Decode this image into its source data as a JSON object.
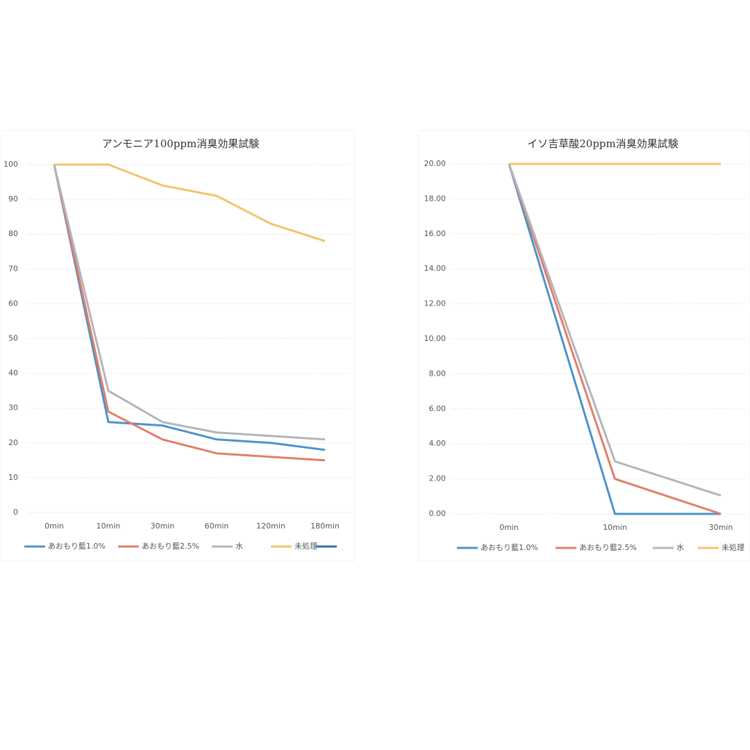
{
  "chart_data": [
    {
      "type": "line",
      "title": "アンモニア100ppm消臭効果試験",
      "categories": [
        "0min",
        "10min",
        "30min",
        "60min",
        "120min",
        "180min"
      ],
      "series": [
        {
          "name": "あおもり藍1.0%",
          "color": "#4a93c9",
          "values": [
            100,
            26,
            25,
            21,
            20,
            18
          ]
        },
        {
          "name": "あおもり藍2.5%",
          "color": "#e27d6a",
          "values": [
            100,
            29,
            21,
            17,
            16,
            15
          ]
        },
        {
          "name": "水",
          "color": "#b4b4b8",
          "values": [
            100,
            35,
            26,
            23,
            22,
            21
          ]
        },
        {
          "name": "未処理",
          "color": "#f1c46a",
          "values": [
            100,
            100,
            94,
            91,
            83,
            78
          ]
        },
        {
          "name": null,
          "color": "#2f6fae",
          "values": [
            null,
            null,
            null,
            null,
            null,
            null
          ]
        }
      ],
      "ylim": [
        0,
        100
      ],
      "yticks": [
        0,
        10,
        20,
        30,
        40,
        50,
        60,
        70,
        80,
        90,
        100
      ],
      "grid": true
    },
    {
      "type": "line",
      "title": "イソ吉草酸20ppm消臭効果試験",
      "categories": [
        "0min",
        "10min",
        "30min"
      ],
      "series": [
        {
          "name": "あおもり藍1.0%",
          "color": "#4a93c9",
          "values": [
            20,
            0,
            0
          ]
        },
        {
          "name": "あおもり藍2.5%",
          "color": "#e27d6a",
          "values": [
            20,
            2,
            0
          ]
        },
        {
          "name": "水",
          "color": "#b4b4b8",
          "values": [
            20,
            3,
            1.05
          ]
        },
        {
          "name": "未処理",
          "color": "#f1c46a",
          "values": [
            20,
            20,
            20
          ]
        }
      ],
      "ylim": [
        0,
        20
      ],
      "yticks": [
        {
          "value": 0,
          "label": "0.00"
        },
        {
          "value": 2,
          "label": "2.00"
        },
        {
          "value": 4,
          "label": "4.00"
        },
        {
          "value": 6,
          "label": "6.00"
        },
        {
          "value": 8,
          "label": "8.00"
        },
        {
          "value": 10,
          "label": "10.00"
        },
        {
          "value": 12,
          "label": "12.00"
        },
        {
          "value": 14,
          "label": "14.00"
        },
        {
          "value": 16,
          "label": "16.00"
        },
        {
          "value": 18,
          "label": "18.00"
        },
        {
          "value": 20,
          "label": "20.00"
        }
      ],
      "grid": true
    }
  ]
}
